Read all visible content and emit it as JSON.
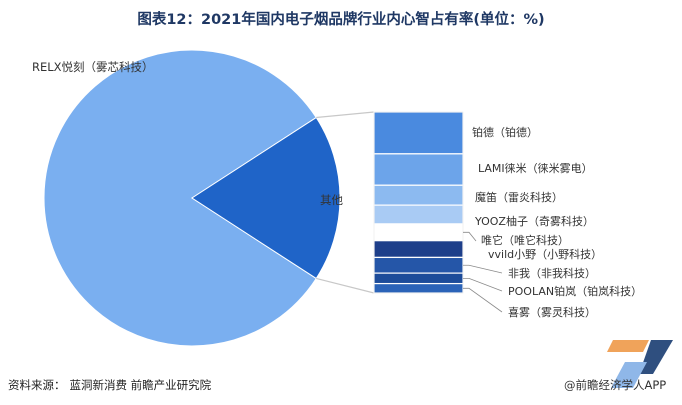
{
  "title": "图表12：2021年国内电子烟品牌行业内心智占有率(单位：%)",
  "source": {
    "label": "资料来源：",
    "text": "蓝洞新消费 前瞻产业研究院"
  },
  "brand": "@前瞻经济学人APP",
  "chart_data": {
    "type": "pie",
    "title": "图表12：2021年国内电子烟品牌行业内心智占有率(单位：%)",
    "main_pie": {
      "slices": [
        {
          "label": "RELX悦刻（雾芯科技）",
          "value": 81.7,
          "color": "#7aaff0"
        },
        {
          "label": "其他",
          "value": 18.3,
          "color": "#1f64c8"
        }
      ]
    },
    "breakdown_of": "其他",
    "breakdown": [
      {
        "label": "铂德（铂德）",
        "value": 4.0,
        "color": "#4a8adf"
      },
      {
        "label": "LAMI徕米（徕米雾电）",
        "value": 3.0,
        "color": "#6ca4ea"
      },
      {
        "label": "魔笛（雷炎科技）",
        "value": 1.9,
        "color": "#8cbaf0"
      },
      {
        "label": "YOOZ柚子（奇雾科技）",
        "value": 1.8,
        "color": "#a9cbf4"
      },
      {
        "label": "唯它（唯它科技）",
        "value": 1.6,
        "color": "#ffffff"
      },
      {
        "label": "vvild小野（小野科技）",
        "value": 1.6,
        "color": "#1e3f8a"
      },
      {
        "label": "非我（非我科技）",
        "value": 1.5,
        "color": "#2556a8"
      },
      {
        "label": "POOLAN铂岚（铂岚科技）",
        "value": 1.0,
        "color": "#1d4c9a"
      },
      {
        "label": "喜雾（雾灵科技）",
        "value": 0.9,
        "color": "#2b63b8"
      }
    ]
  }
}
